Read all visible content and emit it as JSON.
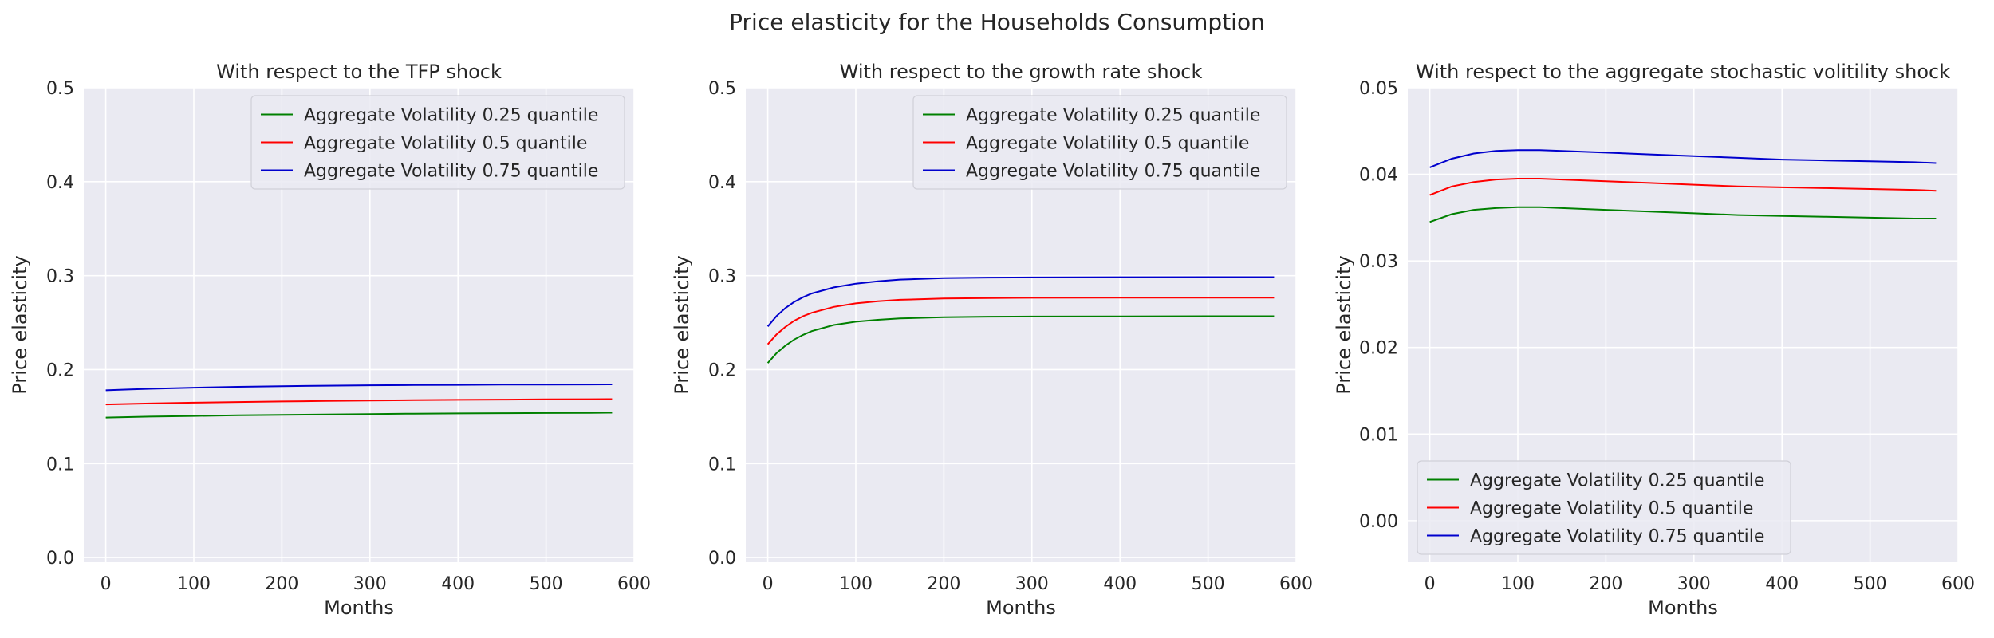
{
  "figure": {
    "title": "Price elasticity for the Households Consumption"
  },
  "style": {
    "axes_background": "#eaeaf2",
    "grid_color": "#ffffff",
    "text_color": "#262626",
    "legend_background": "#eaeaf2",
    "legend_border": "#d0d0d8"
  },
  "chart_data": [
    {
      "type": "line",
      "title": "With respect to the TFP shock",
      "xlabel": "Months",
      "ylabel": "Price elasticity",
      "xlim": [
        -25,
        600
      ],
      "ylim": [
        -0.005,
        0.5
      ],
      "xticks": [
        0,
        100,
        200,
        300,
        400,
        500,
        600
      ],
      "xtick_labels": [
        "0",
        "100",
        "200",
        "300",
        "400",
        "500",
        "600"
      ],
      "yticks": [
        0.0,
        0.1,
        0.2,
        0.3,
        0.4,
        0.5
      ],
      "ytick_labels": [
        "0.0",
        "0.1",
        "0.2",
        "0.3",
        "0.4",
        "0.5"
      ],
      "grid": true,
      "legend_position": "upper right",
      "series": [
        {
          "name": "Aggregate Volatility 0.25 quantile",
          "color": "#008000",
          "x": [
            0,
            25,
            50,
            100,
            150,
            200,
            250,
            300,
            350,
            400,
            450,
            500,
            550,
            575
          ],
          "y": [
            0.149,
            0.1495,
            0.15,
            0.1507,
            0.1513,
            0.1518,
            0.1523,
            0.1527,
            0.1531,
            0.1534,
            0.1536,
            0.1538,
            0.154,
            0.1541
          ]
        },
        {
          "name": "Aggregate Volatility 0.5 quantile",
          "color": "#ff0000",
          "x": [
            0,
            25,
            50,
            100,
            150,
            200,
            250,
            300,
            350,
            400,
            450,
            500,
            550,
            575
          ],
          "y": [
            0.163,
            0.1635,
            0.164,
            0.1648,
            0.1655,
            0.1661,
            0.1666,
            0.1671,
            0.1675,
            0.1678,
            0.1681,
            0.1683,
            0.1685,
            0.1686
          ]
        },
        {
          "name": "Aggregate Volatility 0.75 quantile",
          "color": "#0000cd",
          "x": [
            0,
            25,
            50,
            100,
            150,
            200,
            250,
            300,
            350,
            400,
            450,
            500,
            550,
            575
          ],
          "y": [
            0.178,
            0.1788,
            0.1796,
            0.1808,
            0.1817,
            0.1824,
            0.1829,
            0.1833,
            0.1836,
            0.1838,
            0.184,
            0.1841,
            0.1842,
            0.1843
          ]
        }
      ]
    },
    {
      "type": "line",
      "title": "With respect to the growth rate shock",
      "xlabel": "Months",
      "ylabel": "Price elasticity",
      "xlim": [
        -25,
        600
      ],
      "ylim": [
        -0.005,
        0.5
      ],
      "xticks": [
        0,
        100,
        200,
        300,
        400,
        500,
        600
      ],
      "xtick_labels": [
        "0",
        "100",
        "200",
        "300",
        "400",
        "500",
        "600"
      ],
      "yticks": [
        0.0,
        0.1,
        0.2,
        0.3,
        0.4,
        0.5
      ],
      "ytick_labels": [
        "0.0",
        "0.1",
        "0.2",
        "0.3",
        "0.4",
        "0.5"
      ],
      "grid": true,
      "legend_position": "upper right",
      "series": [
        {
          "name": "Aggregate Volatility 0.25 quantile",
          "color": "#008000",
          "x": [
            0,
            10,
            20,
            30,
            40,
            50,
            75,
            100,
            125,
            150,
            200,
            250,
            300,
            400,
            500,
            575
          ],
          "y": [
            0.207,
            0.2175,
            0.2255,
            0.232,
            0.237,
            0.241,
            0.2475,
            0.251,
            0.253,
            0.2545,
            0.2558,
            0.2563,
            0.2565,
            0.2567,
            0.2568,
            0.2568
          ]
        },
        {
          "name": "Aggregate Volatility 0.5 quantile",
          "color": "#ff0000",
          "x": [
            0,
            10,
            20,
            30,
            40,
            50,
            75,
            100,
            125,
            150,
            200,
            250,
            300,
            400,
            500,
            575
          ],
          "y": [
            0.227,
            0.2375,
            0.2455,
            0.252,
            0.2568,
            0.2605,
            0.2668,
            0.2705,
            0.2728,
            0.2743,
            0.2757,
            0.2762,
            0.2764,
            0.2765,
            0.2766,
            0.2766
          ]
        },
        {
          "name": "Aggregate Volatility 0.75 quantile",
          "color": "#0000cd",
          "x": [
            0,
            10,
            20,
            30,
            40,
            50,
            75,
            100,
            125,
            150,
            200,
            250,
            300,
            400,
            500,
            575
          ],
          "y": [
            0.246,
            0.257,
            0.2655,
            0.272,
            0.277,
            0.281,
            0.2875,
            0.2915,
            0.294,
            0.2958,
            0.2973,
            0.2979,
            0.2981,
            0.2983,
            0.2984,
            0.2984
          ]
        }
      ]
    },
    {
      "type": "line",
      "title": "With respect to the aggregate stochastic volitility shock",
      "xlabel": "Months",
      "ylabel": "Price elasticity",
      "xlim": [
        -25,
        600
      ],
      "ylim": [
        -0.0048,
        0.05
      ],
      "xticks": [
        0,
        100,
        200,
        300,
        400,
        500,
        600
      ],
      "xtick_labels": [
        "0",
        "100",
        "200",
        "300",
        "400",
        "500",
        "600"
      ],
      "yticks": [
        0.0,
        0.01,
        0.02,
        0.03,
        0.04,
        0.05
      ],
      "ytick_labels": [
        "0.00",
        "0.01",
        "0.02",
        "0.03",
        "0.04",
        "0.05"
      ],
      "grid": true,
      "legend_position": "lower left",
      "series": [
        {
          "name": "Aggregate Volatility 0.25 quantile",
          "color": "#008000",
          "x": [
            0,
            25,
            50,
            75,
            100,
            125,
            150,
            200,
            250,
            300,
            350,
            400,
            450,
            500,
            550,
            575
          ],
          "y": [
            0.0345,
            0.0354,
            0.0359,
            0.0361,
            0.0362,
            0.0362,
            0.0361,
            0.0359,
            0.0357,
            0.0355,
            0.0353,
            0.0352,
            0.0351,
            0.035,
            0.0349,
            0.0349
          ]
        },
        {
          "name": "Aggregate Volatility 0.5 quantile",
          "color": "#ff0000",
          "x": [
            0,
            25,
            50,
            75,
            100,
            125,
            150,
            200,
            250,
            300,
            350,
            400,
            450,
            500,
            550,
            575
          ],
          "y": [
            0.0376,
            0.0386,
            0.0391,
            0.0394,
            0.0395,
            0.0395,
            0.0394,
            0.0392,
            0.039,
            0.0388,
            0.0386,
            0.0385,
            0.0384,
            0.0383,
            0.0382,
            0.0381
          ]
        },
        {
          "name": "Aggregate Volatility 0.75 quantile",
          "color": "#0000cd",
          "x": [
            0,
            25,
            50,
            75,
            100,
            125,
            150,
            200,
            250,
            300,
            350,
            400,
            450,
            500,
            550,
            575
          ],
          "y": [
            0.0408,
            0.0418,
            0.0424,
            0.0427,
            0.0428,
            0.0428,
            0.0427,
            0.0425,
            0.0423,
            0.0421,
            0.0419,
            0.0417,
            0.0416,
            0.0415,
            0.0414,
            0.0413
          ]
        }
      ]
    }
  ]
}
